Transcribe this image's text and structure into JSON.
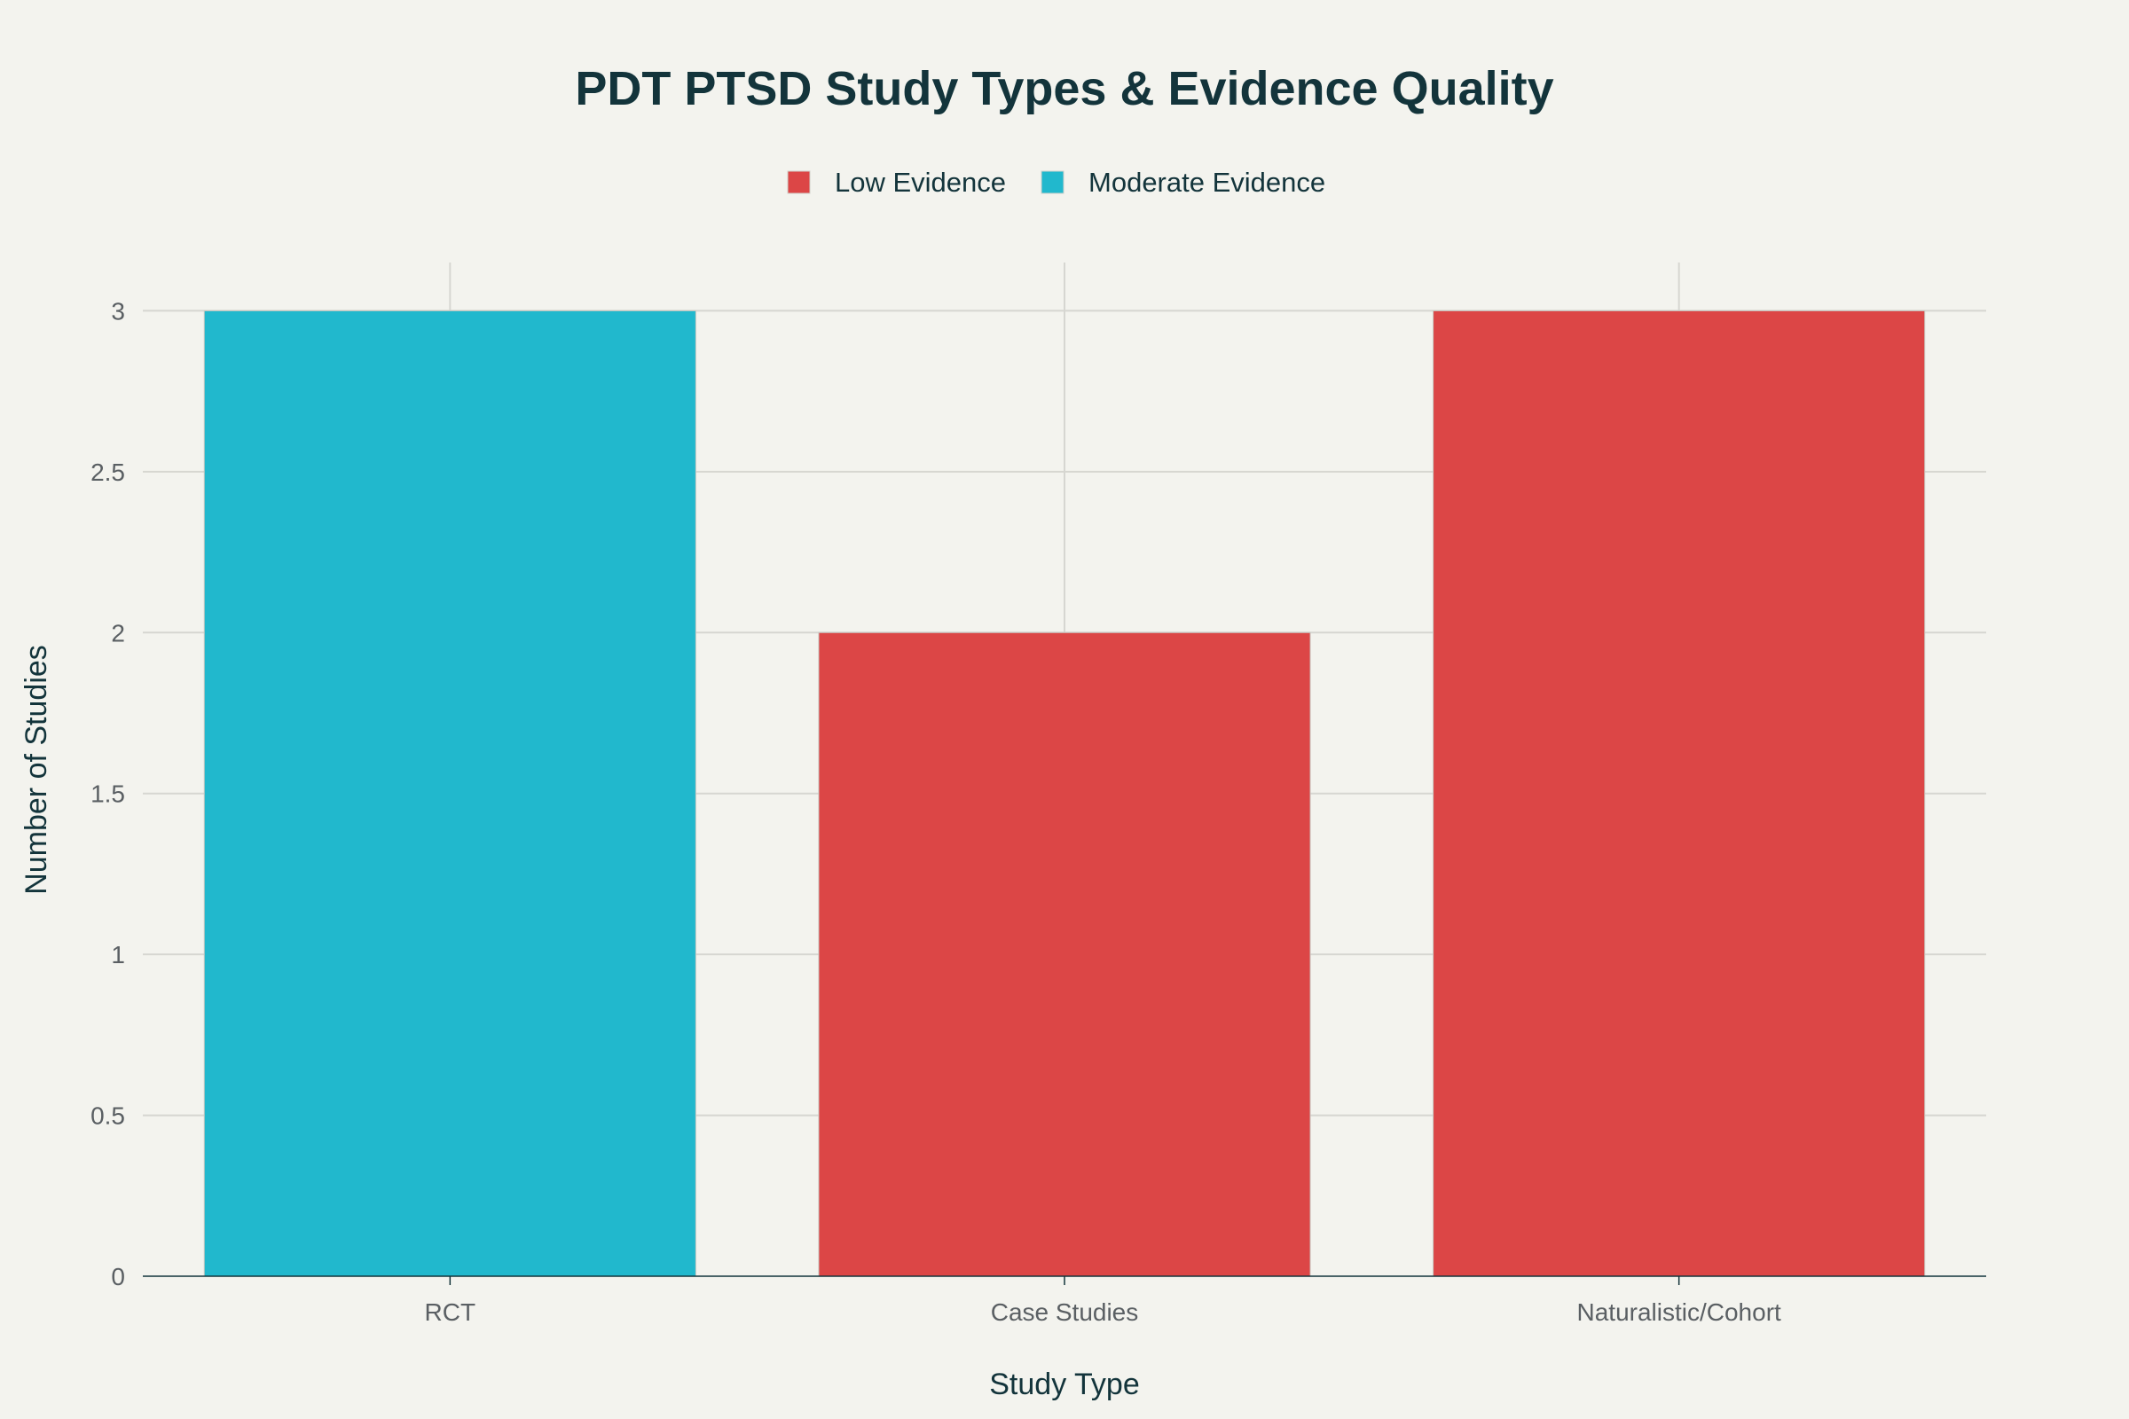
{
  "chart_data": {
    "type": "bar",
    "title": "PDT PTSD Study Types & Evidence Quality",
    "xlabel": "Study Type",
    "ylabel": "Number of Studies",
    "categories": [
      "RCT",
      "Case Studies",
      "Naturalistic/Cohort"
    ],
    "values": [
      3,
      2,
      3
    ],
    "evidence": [
      "Moderate Evidence",
      "Low Evidence",
      "Low Evidence"
    ],
    "series": [
      {
        "name": "Low Evidence",
        "color": "#dc4646"
      },
      {
        "name": "Moderate Evidence",
        "color": "#21b8cd"
      }
    ],
    "ylim": [
      0,
      3.15
    ],
    "yticks": [
      0,
      0.5,
      1,
      1.5,
      2,
      2.5,
      3
    ],
    "ytick_labels": [
      "0",
      "0.5",
      "1",
      "1.5",
      "2",
      "2.5",
      "3"
    ],
    "grid": true,
    "legend_position": "top-center"
  }
}
